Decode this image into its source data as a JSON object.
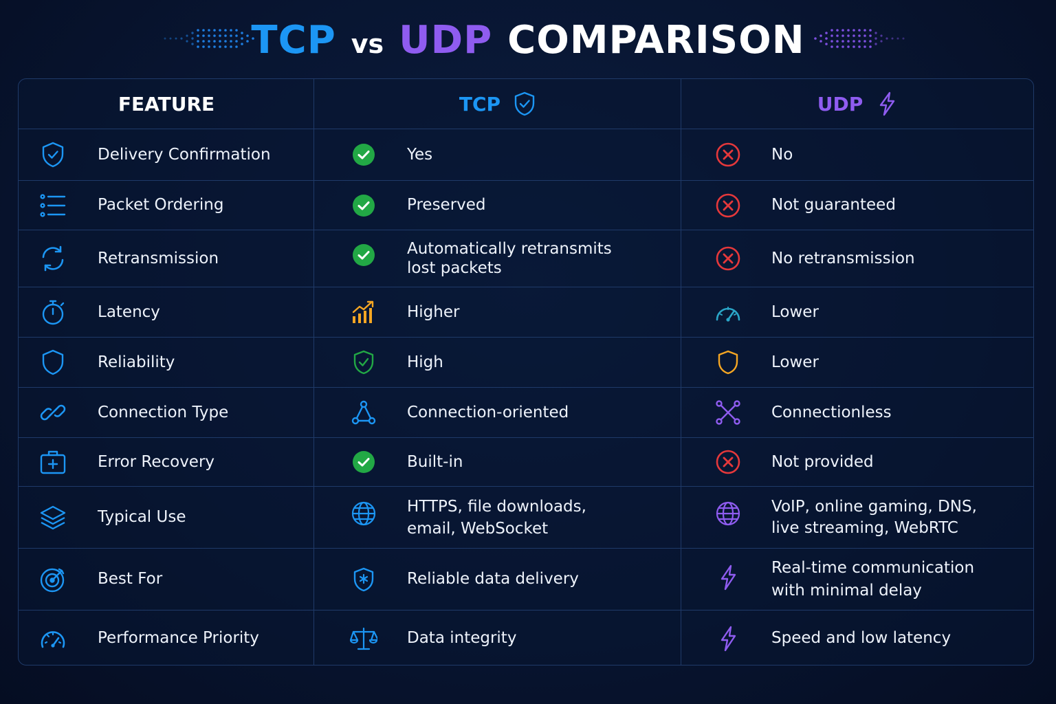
{
  "title": {
    "tcp": "TCP",
    "vs": "vs",
    "udp": "UDP",
    "rest": "COMPARISON"
  },
  "colors": {
    "tcp": "#1c96f4",
    "udp": "#8f5cf0",
    "ok": "#22a845",
    "bad": "#e5383b",
    "warn": "#f5a623"
  },
  "columns": {
    "feature": "FEATURE",
    "tcp": "TCP",
    "udp": "UDP"
  },
  "rows": [
    {
      "feature": "Delivery Confirmation",
      "feature_icon": "shield-check-icon",
      "tcp": "Yes",
      "tcp_icon": "check-circle-icon",
      "udp": "No",
      "udp_icon": "x-circle-icon"
    },
    {
      "feature": "Packet Ordering",
      "feature_icon": "ordered-list-icon",
      "tcp": "Preserved",
      "tcp_icon": "check-circle-icon",
      "udp": "Not guaranteed",
      "udp_icon": "x-circle-icon"
    },
    {
      "feature": "Retransmission",
      "feature_icon": "refresh-icon",
      "tcp": "Automatically retransmits\nlost packets",
      "tcp_icon": "check-circle-icon",
      "udp": "No retransmission",
      "udp_icon": "x-circle-icon"
    },
    {
      "feature": "Latency",
      "feature_icon": "stopwatch-icon",
      "tcp": "Higher",
      "tcp_icon": "rising-bars-icon",
      "udp": "Lower",
      "udp_icon": "speedometer-icon"
    },
    {
      "feature": "Reliability",
      "feature_icon": "shield-icon",
      "tcp": "High",
      "tcp_icon": "shield-check-green-icon",
      "udp": "Lower",
      "udp_icon": "shield-orange-icon"
    },
    {
      "feature": "Connection Type",
      "feature_icon": "link-icon",
      "tcp": "Connection-oriented",
      "tcp_icon": "network-nodes-icon",
      "udp": "Connectionless",
      "udp_icon": "scatter-nodes-icon"
    },
    {
      "feature": "Error Recovery",
      "feature_icon": "first-aid-kit-icon",
      "tcp": "Built-in",
      "tcp_icon": "check-circle-icon",
      "udp": "Not provided",
      "udp_icon": "x-circle-icon"
    },
    {
      "feature": "Typical Use",
      "feature_icon": "layers-icon",
      "tcp": "HTTPS, file downloads,\nemail, WebSocket",
      "tcp_icon": "globe-icon",
      "udp": "VoIP, online gaming, DNS,\nlive streaming, WebRTC",
      "udp_icon": "globe-purple-icon"
    },
    {
      "feature": "Best For",
      "feature_icon": "target-icon",
      "tcp": "Reliable data delivery",
      "tcp_icon": "shield-star-icon",
      "udp": "Real-time communication\nwith minimal delay",
      "udp_icon": "lightning-icon"
    },
    {
      "feature": "Performance Priority",
      "feature_icon": "gauge-icon",
      "tcp": "Data integrity",
      "tcp_icon": "balance-scale-icon",
      "udp": "Speed and low latency",
      "udp_icon": "lightning-icon"
    }
  ]
}
